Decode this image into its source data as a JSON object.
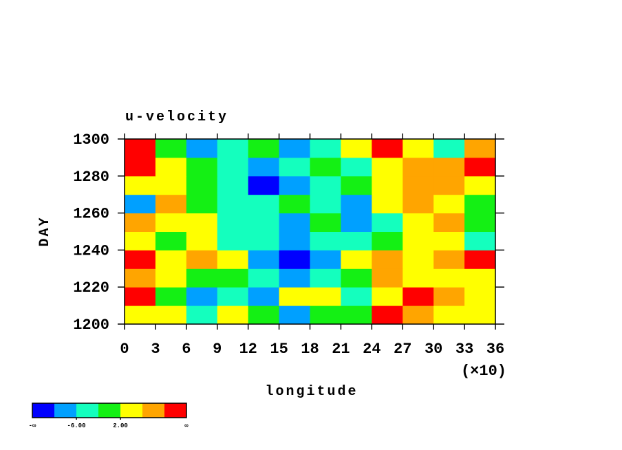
{
  "chart_data": {
    "type": "heatmap",
    "title": "u-velocity",
    "x_label": "longitude",
    "y_label": "DAY",
    "x_multiplier_label": "(×10)",
    "xlim": [
      0,
      360
    ],
    "ylim": [
      1200,
      1300
    ],
    "xticks": [
      {
        "value": 0,
        "label": "0"
      },
      {
        "value": 30,
        "label": "3"
      },
      {
        "value": 60,
        "label": "6"
      },
      {
        "value": 90,
        "label": "9"
      },
      {
        "value": 120,
        "label": "12"
      },
      {
        "value": 150,
        "label": "15"
      },
      {
        "value": 180,
        "label": "18"
      },
      {
        "value": 210,
        "label": "21"
      },
      {
        "value": 240,
        "label": "24"
      },
      {
        "value": 270,
        "label": "27"
      },
      {
        "value": 300,
        "label": "30"
      },
      {
        "value": 330,
        "label": "33"
      },
      {
        "value": 360,
        "label": "36"
      }
    ],
    "yticks": [
      1200,
      1220,
      1240,
      1260,
      1280,
      1300
    ],
    "x": [
      15,
      45,
      75,
      105,
      135,
      165,
      195,
      225,
      255,
      285,
      315,
      345
    ],
    "y": [
      1205,
      1215,
      1225,
      1235,
      1245,
      1255,
      1265,
      1275,
      1285,
      1295
    ],
    "z": [
      [
        4,
        4,
        -4,
        4,
        0,
        -8,
        0,
        0,
        12,
        8,
        4,
        4
      ],
      [
        12,
        0,
        -8,
        -4,
        -8,
        4,
        4,
        -4,
        4,
        12,
        8,
        4
      ],
      [
        8,
        4,
        0,
        0,
        -4,
        -8,
        -4,
        0,
        8,
        4,
        4,
        4
      ],
      [
        12,
        4,
        8,
        4,
        -8,
        -12,
        -8,
        4,
        8,
        4,
        8,
        12
      ],
      [
        4,
        0,
        4,
        -4,
        -4,
        -8,
        -4,
        -4,
        0,
        4,
        4,
        -4
      ],
      [
        8,
        4,
        4,
        -4,
        -4,
        -8,
        0,
        -8,
        -4,
        4,
        8,
        0
      ],
      [
        -8,
        8,
        0,
        -4,
        -4,
        0,
        -4,
        -8,
        4,
        8,
        4,
        0
      ],
      [
        4,
        4,
        0,
        -4,
        -12,
        -8,
        -4,
        0,
        4,
        8,
        8,
        4
      ],
      [
        12,
        4,
        0,
        -4,
        -8,
        -4,
        0,
        -4,
        4,
        8,
        8,
        12
      ],
      [
        12,
        0,
        -8,
        -4,
        0,
        -8,
        -4,
        4,
        12,
        4,
        -4,
        8
      ]
    ],
    "levels": [
      -10,
      -6,
      -2,
      2,
      6,
      10
    ],
    "colors": [
      "#0000ff",
      "#00a0ff",
      "#14ffbe",
      "#14f014",
      "#ffff00",
      "#ffa500",
      "#ff0000"
    ],
    "level_labels": [
      {
        "value": -6,
        "label": "-6.00"
      },
      {
        "value": 2,
        "label": "2.00"
      }
    ],
    "low_label": "-∞",
    "high_label": "∞"
  }
}
